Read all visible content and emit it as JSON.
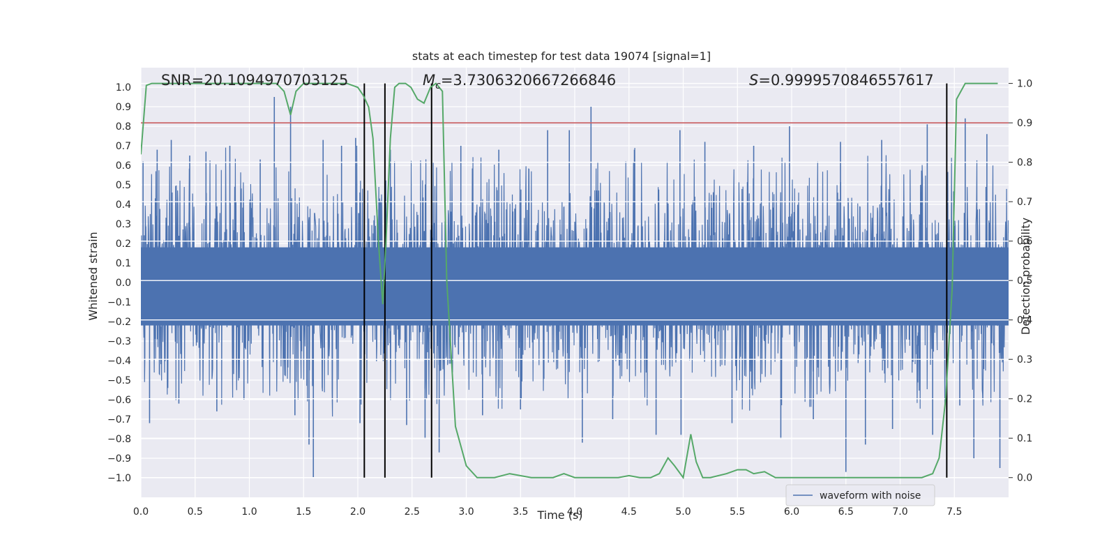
{
  "chart_data": {
    "type": "line",
    "title": "stats at each timestep for test data 19074 [signal=1]",
    "xlabel": "Time (s)",
    "ylabel": "Whitened strain",
    "ylabel_right": "Detection probability",
    "xlim": [
      0.0,
      8.0
    ],
    "ylim": [
      -1.1,
      1.1
    ],
    "ylim_right": [
      -0.05,
      1.04
    ],
    "xticks": [
      0.0,
      0.5,
      1.0,
      1.5,
      2.0,
      2.5,
      3.0,
      3.5,
      4.0,
      4.5,
      5.0,
      5.5,
      6.0,
      6.5,
      7.0,
      7.5
    ],
    "xtick_labels": [
      "0.0",
      "0.5",
      "1.0",
      "1.5",
      "2.0",
      "2.5",
      "3.0",
      "3.5",
      "4.0",
      "4.5",
      "5.0",
      "5.5",
      "6.0",
      "6.5",
      "7.0",
      "7.5"
    ],
    "yticks": [
      1.0,
      0.9,
      0.8,
      0.7,
      0.6,
      0.5,
      0.4,
      0.3,
      0.2,
      0.1,
      0.0,
      -0.1,
      -0.2,
      -0.3,
      -0.4,
      -0.5,
      -0.6,
      -0.7,
      -0.8,
      -0.9,
      -1.0
    ],
    "ytick_labels": [
      "1.0",
      "0.9",
      "0.8",
      "0.7",
      "0.6",
      "0.5",
      "0.4",
      "0.3",
      "0.2",
      "0.1",
      "0.0",
      "−0.1",
      "−0.2",
      "−0.3",
      "−0.4",
      "−0.5",
      "−0.6",
      "−0.7",
      "−0.8",
      "−0.9",
      "−1.0"
    ],
    "yticks_right": [
      1.0,
      0.9,
      0.8,
      0.7,
      0.6,
      0.5,
      0.4,
      0.3,
      0.2,
      0.1,
      0.0
    ],
    "ytick_right_labels": [
      "1.0",
      "0.9",
      "0.8",
      "0.7",
      "0.6",
      "0.5",
      "0.4",
      "0.3",
      "0.2",
      "0.1",
      "0.0"
    ],
    "grid": true,
    "annotations": {
      "snr": "SNR=20.1094970703125",
      "mc_symbol": "M",
      "mc_subscript": "c",
      "mc_value": "=3.7306320667266846",
      "s_symbol": "S",
      "s_value": "=0.9999570846557617"
    },
    "series": [
      {
        "name": "waveform with noise",
        "color": "#4c72b0",
        "style": "dense noise",
        "typical_envelope": [
          -0.4,
          0.5
        ],
        "spikes": [
          {
            "t": 0.02,
            "v": 0.62
          },
          {
            "t": 0.08,
            "v": -0.72
          },
          {
            "t": 0.15,
            "v": 0.68
          },
          {
            "t": 0.28,
            "v": 0.73
          },
          {
            "t": 0.35,
            "v": -0.62
          },
          {
            "t": 0.45,
            "v": 0.65
          },
          {
            "t": 0.6,
            "v": 0.67
          },
          {
            "t": 0.7,
            "v": -0.66
          },
          {
            "t": 0.82,
            "v": 0.7
          },
          {
            "t": 0.95,
            "v": -0.6
          },
          {
            "t": 1.1,
            "v": 0.63
          },
          {
            "t": 1.23,
            "v": 0.95
          },
          {
            "t": 1.38,
            "v": 0.9
          },
          {
            "t": 1.42,
            "v": -0.68
          },
          {
            "t": 1.55,
            "v": -0.83
          },
          {
            "t": 1.59,
            "v": -1.0
          },
          {
            "t": 1.68,
            "v": 0.73
          },
          {
            "t": 1.85,
            "v": 0.7
          },
          {
            "t": 1.98,
            "v": 0.74
          },
          {
            "t": 2.02,
            "v": -0.72
          },
          {
            "t": 2.3,
            "v": 0.68
          },
          {
            "t": 2.45,
            "v": -0.73
          },
          {
            "t": 2.62,
            "v": -0.8
          },
          {
            "t": 2.75,
            "v": -0.87
          },
          {
            "t": 2.95,
            "v": 0.7
          },
          {
            "t": 3.15,
            "v": -0.68
          },
          {
            "t": 3.3,
            "v": 0.68
          },
          {
            "t": 3.5,
            "v": -0.65
          },
          {
            "t": 3.75,
            "v": 0.78
          },
          {
            "t": 3.95,
            "v": 0.78
          },
          {
            "t": 4.07,
            "v": -0.82
          },
          {
            "t": 4.15,
            "v": 0.9
          },
          {
            "t": 4.35,
            "v": -0.7
          },
          {
            "t": 4.55,
            "v": 0.68
          },
          {
            "t": 4.75,
            "v": -0.78
          },
          {
            "t": 4.97,
            "v": 0.78
          },
          {
            "t": 4.98,
            "v": -0.78
          },
          {
            "t": 5.2,
            "v": 0.72
          },
          {
            "t": 5.45,
            "v": -0.72
          },
          {
            "t": 5.65,
            "v": 0.7
          },
          {
            "t": 5.9,
            "v": -0.8
          },
          {
            "t": 5.98,
            "v": 0.8
          },
          {
            "t": 6.2,
            "v": -0.7
          },
          {
            "t": 6.45,
            "v": 0.72
          },
          {
            "t": 6.5,
            "v": -0.97
          },
          {
            "t": 6.68,
            "v": -0.83
          },
          {
            "t": 6.83,
            "v": 0.73
          },
          {
            "t": 6.93,
            "v": -0.75
          },
          {
            "t": 7.25,
            "v": 0.81
          },
          {
            "t": 7.3,
            "v": -0.78
          },
          {
            "t": 7.55,
            "v": -0.63
          },
          {
            "t": 7.6,
            "v": 0.84
          },
          {
            "t": 7.68,
            "v": -0.9
          },
          {
            "t": 7.8,
            "v": 0.76
          },
          {
            "t": 7.92,
            "v": -0.95
          }
        ]
      },
      {
        "name": "detection probability",
        "axis": "right",
        "color": "#55a868",
        "x": [
          0.0,
          0.05,
          0.1,
          0.2,
          0.3,
          0.5,
          0.7,
          0.9,
          1.0,
          1.1,
          1.2,
          1.25,
          1.32,
          1.38,
          1.43,
          1.5,
          1.6,
          1.7,
          1.8,
          1.9,
          2.0,
          2.05,
          2.1,
          2.14,
          2.19,
          2.23,
          2.26,
          2.3,
          2.34,
          2.38,
          2.44,
          2.49,
          2.55,
          2.61,
          2.67,
          2.72,
          2.78,
          2.82,
          2.9,
          3.0,
          3.1,
          3.2,
          3.26,
          3.4,
          3.6,
          3.7,
          3.8,
          3.9,
          4.0,
          4.2,
          4.4,
          4.5,
          4.6,
          4.7,
          4.78,
          4.86,
          4.92,
          5.0,
          5.07,
          5.12,
          5.18,
          5.25,
          5.4,
          5.5,
          5.58,
          5.65,
          5.75,
          5.85,
          6.0,
          6.4,
          6.6,
          6.8,
          7.0,
          7.2,
          7.3,
          7.36,
          7.42,
          7.48,
          7.52,
          7.6,
          7.9
        ],
        "y": [
          0.82,
          0.995,
          1.0,
          1.0,
          1.0,
          1.0,
          1.0,
          1.0,
          1.0,
          1.0,
          1.0,
          1.0,
          0.98,
          0.92,
          0.98,
          1.0,
          1.0,
          1.0,
          1.0,
          1.0,
          0.99,
          0.97,
          0.94,
          0.86,
          0.6,
          0.44,
          0.6,
          0.86,
          0.99,
          1.0,
          1.0,
          0.99,
          0.96,
          0.95,
          0.99,
          1.0,
          0.98,
          0.5,
          0.13,
          0.03,
          0.0,
          0.0,
          0.0,
          0.01,
          0.0,
          0.0,
          0.0,
          0.01,
          0.0,
          0.0,
          0.0,
          0.005,
          0.0,
          0.0,
          0.01,
          0.05,
          0.03,
          0.0,
          0.11,
          0.04,
          0.0,
          0.0,
          0.01,
          0.02,
          0.02,
          0.01,
          0.015,
          0.0,
          0.0,
          0.0,
          0.0,
          0.0,
          0.0,
          0.0,
          0.01,
          0.05,
          0.2,
          0.48,
          0.96,
          1.0,
          1.0
        ]
      }
    ],
    "threshold": {
      "axis": "right",
      "value": 0.9,
      "color": "#c44e52"
    },
    "vertical_markers": [
      2.06,
      2.25,
      2.68,
      7.43
    ],
    "legend": {
      "placement": "lower-right",
      "entries": [
        "waveform with noise"
      ]
    }
  }
}
